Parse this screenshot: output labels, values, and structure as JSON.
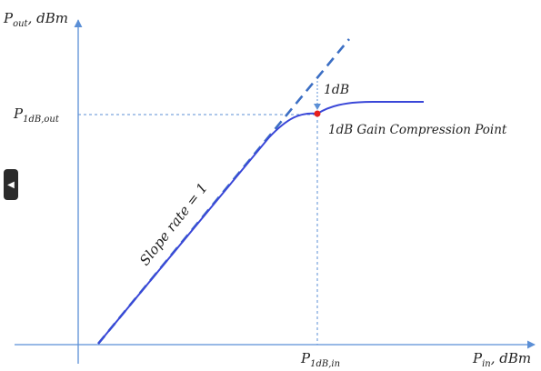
{
  "labels": {
    "y_axis_main": "P",
    "y_axis_sub": "out",
    "y_axis_unit": ", dBm",
    "x_axis_main": "P",
    "x_axis_sub": "in",
    "x_axis_unit": ", dBm",
    "p1db_out_main": "P",
    "p1db_out_sub": "1dB,out",
    "p1db_in_main": "P",
    "p1db_in_sub": "1dB,in",
    "delta_label": "1dB",
    "compression_point_label": "1dB Gain Compression Point",
    "slope_label": "Slope rate = 1"
  },
  "icons": {
    "side_tab": "collapse-left-icon"
  },
  "colors": {
    "axis": "#5b8fd6",
    "curve": "#3a47d8",
    "ideal": "#3c6fc4",
    "guide": "#5b8fd6",
    "point": "#e8201c"
  }
}
